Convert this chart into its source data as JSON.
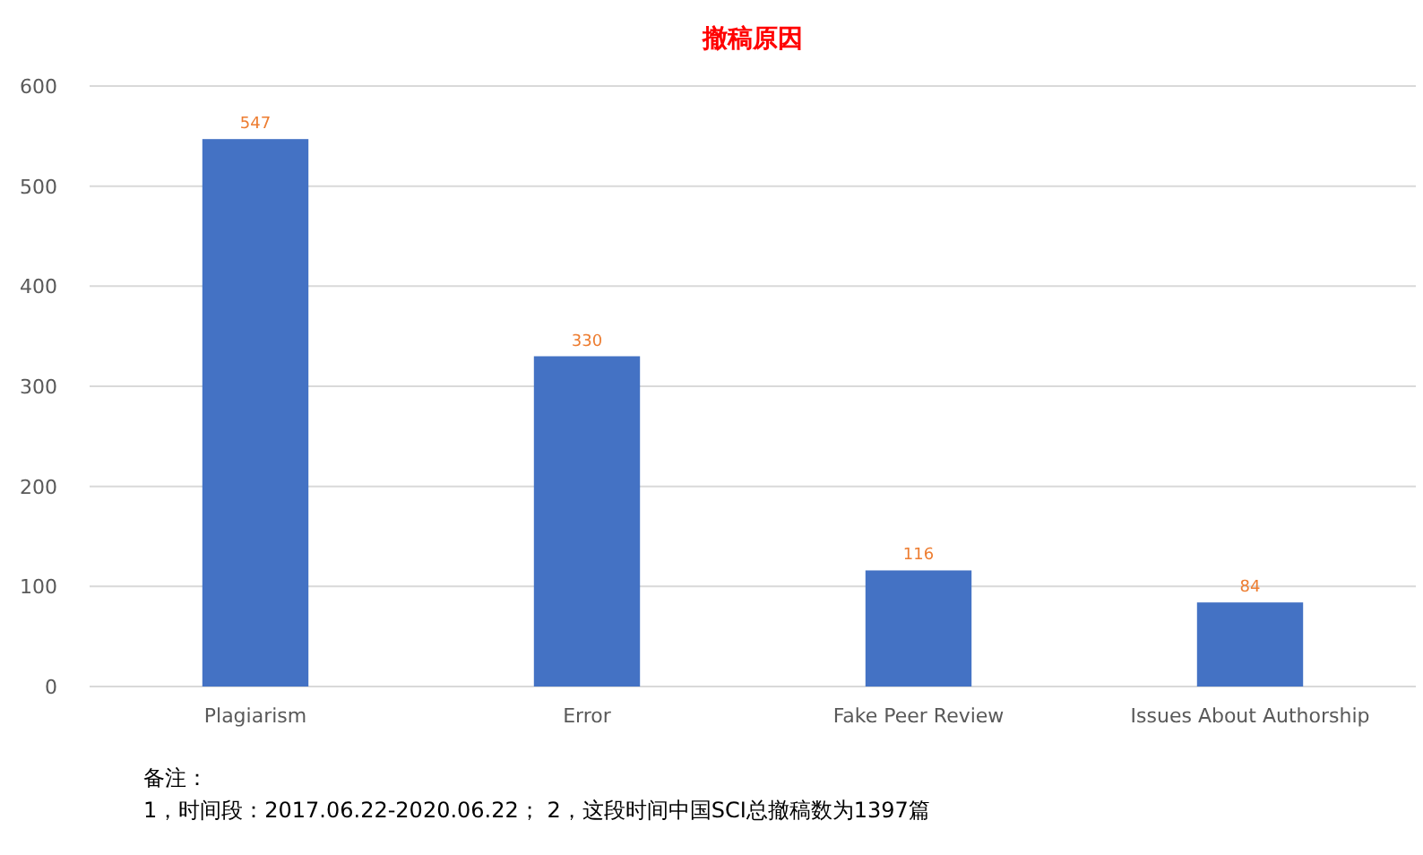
{
  "chart_data": {
    "type": "bar",
    "title": "撤稿原因",
    "categories": [
      "Plagiarism",
      "Error",
      "Fake Peer Review",
      "Issues About Authorship"
    ],
    "values": [
      547,
      330,
      116,
      84
    ],
    "color": "#4472c4",
    "ylim": [
      0,
      600
    ],
    "yticks": [
      0,
      100,
      200,
      300,
      400,
      500,
      600
    ],
    "grid": "y",
    "data_labels": true,
    "annotations": [
      "备注：",
      "1，时间段：2017.06.22-2020.06.22； 2，这段时间中国SCI总撤稿数为1397篇"
    ]
  }
}
